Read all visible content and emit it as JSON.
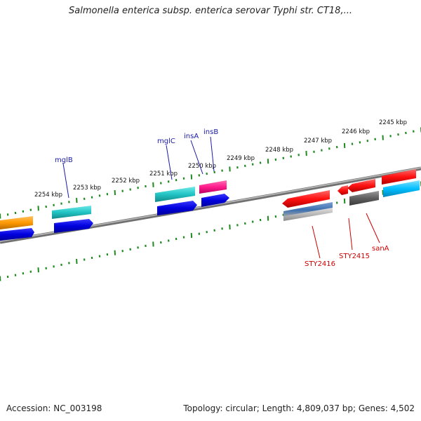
{
  "title": "Salmonella enterica subsp. enterica serovar Typhi str. CT18,...",
  "footer": {
    "accession": "Accession: NC_003198",
    "summary": "Topology: circular; Length: 4,809,037 bp; Genes: 4,502"
  },
  "colors": {
    "backbone": "#8a8a8a",
    "ticks": "#1f8a1f",
    "forward_label": "#1a1aa8",
    "reverse_label": "#cc0000"
  },
  "ruler": {
    "labels": [
      "2245 kbp",
      "2246 kbp",
      "2247 kbp",
      "2248 kbp",
      "2249 kbp",
      "2250 kbp",
      "2251 kbp",
      "2252 kbp",
      "2253 kbp",
      "2254 kbp"
    ]
  },
  "genes": [
    {
      "label": "insB",
      "strand": "forward",
      "color": "#ff1a8c"
    },
    {
      "label": "insA",
      "strand": "forward",
      "color": "#0000ee"
    },
    {
      "label": "mglC",
      "strand": "forward",
      "color": "#22c4c4"
    },
    {
      "label": "mglB",
      "strand": "forward",
      "color": "#22c4c4"
    },
    {
      "label": "STY2416",
      "strand": "reverse",
      "color": "#ff1111"
    },
    {
      "label": "STY2415",
      "strand": "reverse",
      "color": "#ff1111"
    },
    {
      "label": "sanA",
      "strand": "reverse",
      "color": "#6a6a6a"
    }
  ]
}
